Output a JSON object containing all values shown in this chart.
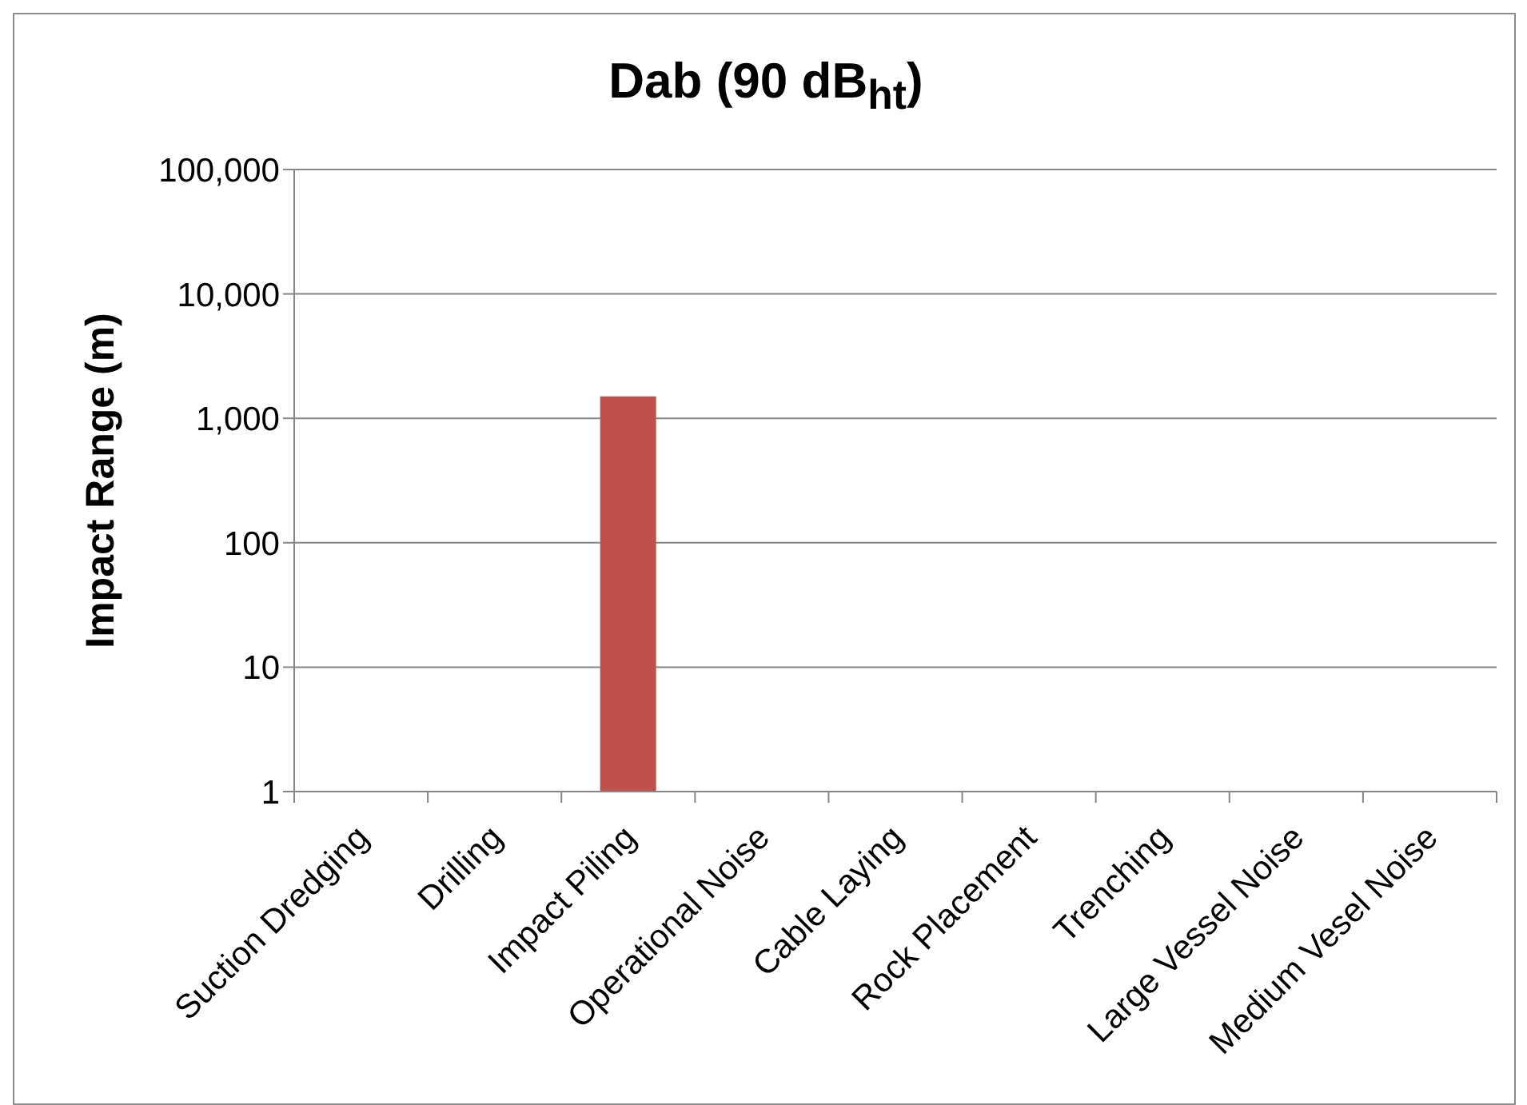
{
  "chart_data": {
    "type": "bar",
    "title": "Dab (90 dB$_{ht}$)",
    "ylabel": "Impact Range (m)",
    "categories": [
      "Suction Dredging",
      "Drilling",
      "Impact Piling",
      "Operational Noise",
      "Cable Laying",
      "Rock Placement",
      "Trenching",
      "Large Vessel Noise",
      "Medium Vesel Noise"
    ],
    "values": [
      null,
      null,
      1500,
      null,
      null,
      null,
      null,
      null,
      null
    ],
    "color": "#c0504d",
    "log": true,
    "ylim": [
      1,
      100000
    ],
    "yticks": [
      1,
      10,
      100,
      {
        "value": 1000,
        "label": "1,000"
      },
      {
        "value": 10000,
        "label": "10,000"
      },
      {
        "value": 100000,
        "label": "100,000"
      }
    ],
    "grid": "y"
  }
}
